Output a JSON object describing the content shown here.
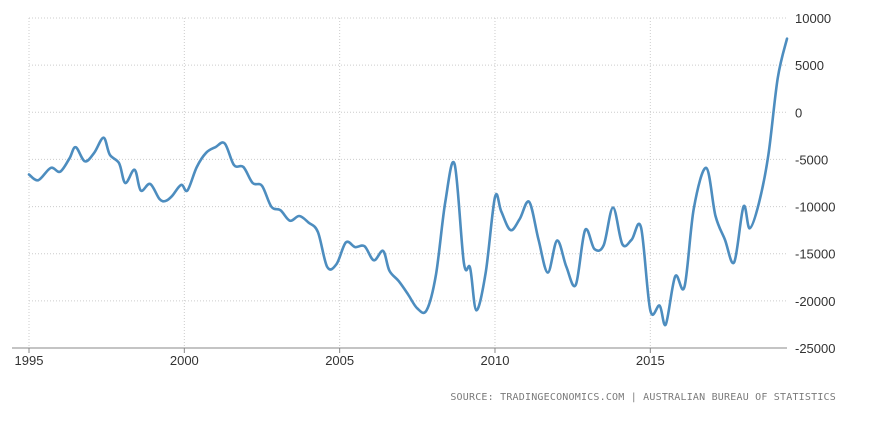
{
  "chart_data": {
    "type": "line",
    "title": "",
    "xlabel": "",
    "ylabel": "",
    "xlim": [
      1995,
      2019.4
    ],
    "ylim": [
      -25000,
      10000
    ],
    "grid": true,
    "x_ticks": [
      1995,
      2000,
      2005,
      2010,
      2015
    ],
    "x_tick_labels": [
      "1995",
      "2000",
      "2005",
      "2010",
      "2015"
    ],
    "y_ticks": [
      10000,
      5000,
      0,
      -5000,
      -10000,
      -15000,
      -20000,
      -25000
    ],
    "y_tick_labels": [
      "10000",
      "5000",
      "0",
      "-5000",
      "-10000",
      "-15000",
      "-20000",
      "-25000"
    ],
    "series": [
      {
        "color": "#4d8dbf",
        "x": [
          1995.0,
          1995.3,
          1995.7,
          1996.0,
          1996.3,
          1996.5,
          1996.8,
          1997.1,
          1997.4,
          1997.6,
          1997.9,
          1998.1,
          1998.4,
          1998.6,
          1998.9,
          1999.2,
          1999.4,
          1999.6,
          1999.9,
          2000.1,
          2000.4,
          2000.7,
          2001.0,
          2001.3,
          2001.6,
          2001.9,
          2002.2,
          2002.5,
          2002.8,
          2003.1,
          2003.4,
          2003.7,
          2004.0,
          2004.3,
          2004.6,
          2004.9,
          2005.2,
          2005.5,
          2005.8,
          2006.1,
          2006.4,
          2006.6,
          2006.9,
          2007.2,
          2007.5,
          2007.8,
          2008.1,
          2008.4,
          2008.7,
          2009.0,
          2009.2,
          2009.4,
          2009.7,
          2010.0,
          2010.2,
          2010.5,
          2010.8,
          2011.1,
          2011.4,
          2011.7,
          2012.0,
          2012.3,
          2012.6,
          2012.9,
          2013.2,
          2013.5,
          2013.8,
          2014.1,
          2014.4,
          2014.7,
          2015.0,
          2015.3,
          2015.5,
          2015.8,
          2016.1,
          2016.4,
          2016.8,
          2017.1,
          2017.4,
          2017.7,
          2018.0,
          2018.2,
          2018.5,
          2018.8,
          2019.1,
          2019.4
        ],
        "y": [
          -6600,
          -7200,
          -5900,
          -6300,
          -4900,
          -3700,
          -5200,
          -4300,
          -2700,
          -4500,
          -5400,
          -7500,
          -6100,
          -8300,
          -7600,
          -9200,
          -9400,
          -8900,
          -7700,
          -8300,
          -5800,
          -4300,
          -3700,
          -3300,
          -5600,
          -5800,
          -7500,
          -7800,
          -10000,
          -10400,
          -11500,
          -11000,
          -11700,
          -12700,
          -16400,
          -16100,
          -13800,
          -14300,
          -14200,
          -15700,
          -14700,
          -16800,
          -17900,
          -19300,
          -20800,
          -21000,
          -17200,
          -9500,
          -5500,
          -16000,
          -16500,
          -21000,
          -17000,
          -9000,
          -10500,
          -12500,
          -11300,
          -9500,
          -13500,
          -17000,
          -13600,
          -16400,
          -18300,
          -12500,
          -14500,
          -14100,
          -10100,
          -14000,
          -13500,
          -12200,
          -21000,
          -20500,
          -22500,
          -17400,
          -18500,
          -10200,
          -5900,
          -11000,
          -13500,
          -15900,
          -10000,
          -12300,
          -9600,
          -4500,
          3600,
          7800
        ]
      }
    ]
  },
  "source_text": "SOURCE: TRADINGECONOMICS.COM | AUSTRALIAN BUREAU OF STATISTICS"
}
